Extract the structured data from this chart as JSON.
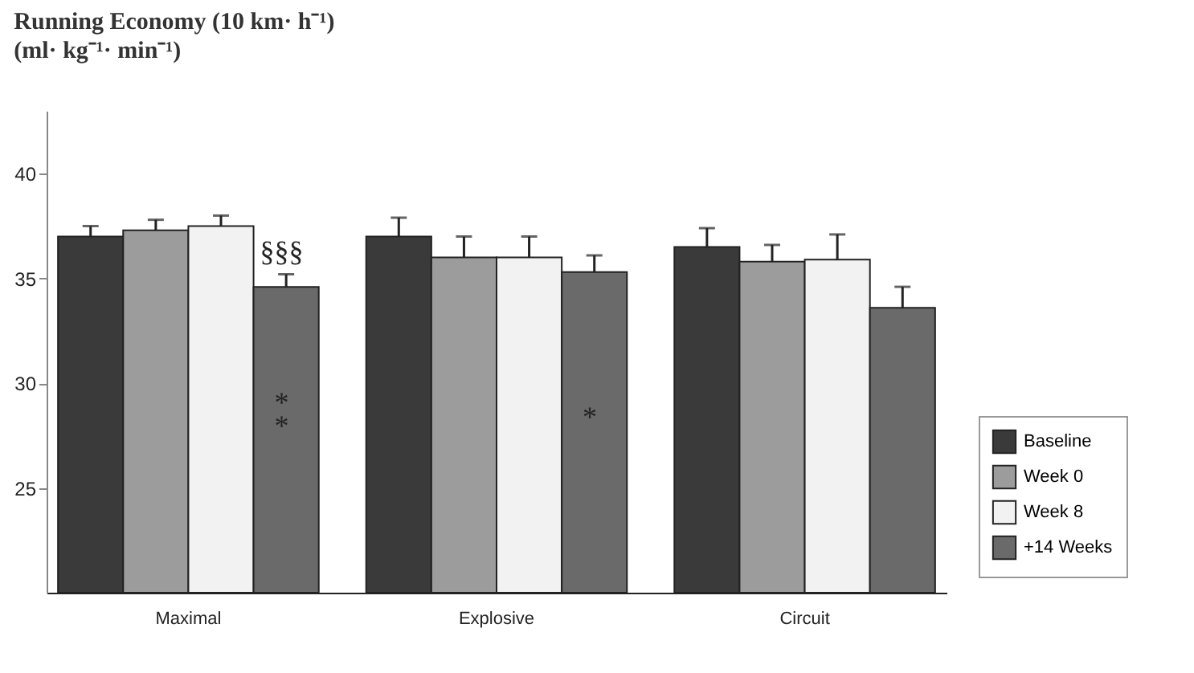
{
  "chart_data": {
    "type": "bar",
    "title": "Running Economy (10 km· h⁻¹)",
    "subtitle": "(ml· kg⁻¹· min⁻¹)",
    "categories": [
      "Maximal",
      "Explosive",
      "Circuit"
    ],
    "series": [
      {
        "name": "Baseline",
        "color": "#3a3a3a",
        "values": [
          37.0,
          37.0,
          36.5
        ],
        "errors": [
          0.5,
          0.9,
          0.9
        ]
      },
      {
        "name": "Week 0",
        "color": "#9c9c9c",
        "values": [
          37.3,
          36.0,
          35.8
        ],
        "errors": [
          0.5,
          1.0,
          0.8
        ]
      },
      {
        "name": "Week 8",
        "color": "#f2f2f2",
        "values": [
          37.5,
          36.0,
          35.9
        ],
        "errors": [
          0.5,
          1.0,
          1.2
        ]
      },
      {
        "name": "+14 Weeks",
        "color": "#6a6a6a",
        "values": [
          34.6,
          35.3,
          33.6
        ],
        "errors": [
          0.6,
          0.8,
          1.0
        ]
      }
    ],
    "ylim": [
      20,
      43
    ],
    "yticks": [
      25,
      30,
      35,
      40
    ],
    "grid": false,
    "legend": "bottom right",
    "annotations": [
      {
        "text": "§§§",
        "x": "Maximal",
        "y": 36.2
      },
      {
        "text": "*",
        "x": "Maximal",
        "y": 29.0
      },
      {
        "text": "*",
        "x": "Maximal",
        "y": 27.9
      },
      {
        "text": "*",
        "x": "Explosive",
        "y": 28.3
      }
    ]
  }
}
